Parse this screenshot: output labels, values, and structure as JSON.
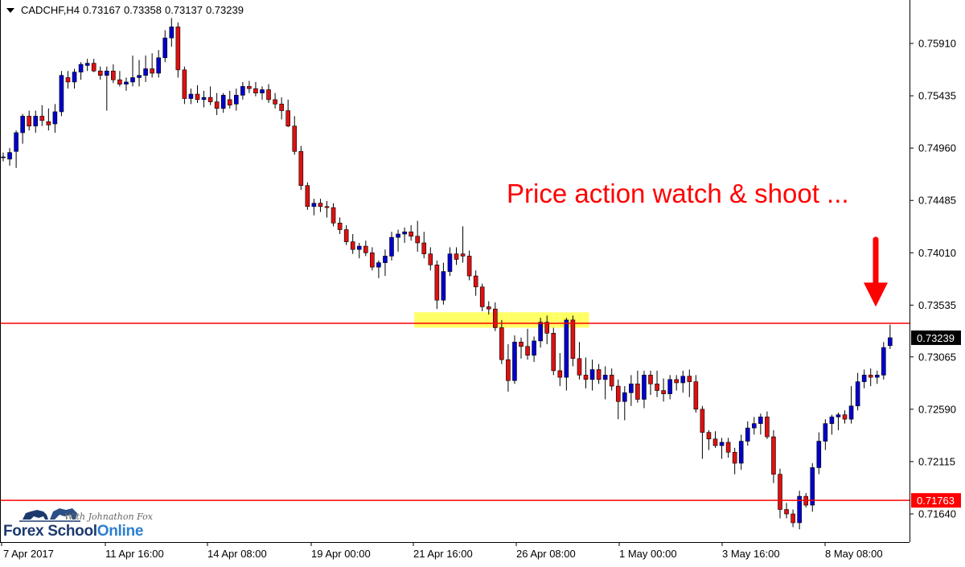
{
  "header": {
    "symbol": "CADCHF,H4",
    "open": "0.73167",
    "high": "0.73358",
    "low": "0.73137",
    "close": "0.73239"
  },
  "annotation": {
    "text": "Price action watch & shoot ...",
    "color": "#ff0000"
  },
  "logo": {
    "text_main": "Forex School",
    "text_accent": "Online",
    "tagline": "With Johnathon Fox"
  },
  "colors": {
    "bull": "#0000cc",
    "bear": "#dd1111",
    "wick": "#000000",
    "level_line": "#ff0000",
    "zone": "#ffff66",
    "grid": "#000000"
  },
  "chart_data": {
    "type": "candlestick",
    "timeframe": "H4",
    "ylim": [
      0.715,
      0.763
    ],
    "y_ticks": [
      "0.75910",
      "0.75435",
      "0.74960",
      "0.74485",
      "0.74010",
      "0.73535",
      "0.73065",
      "0.72590",
      "0.72115",
      "0.71640"
    ],
    "x_ticks": [
      "7 Apr 2017",
      "11 Apr 16:00",
      "14 Apr 08:00",
      "19 Apr 00:00",
      "21 Apr 16:00",
      "26 Apr 08:00",
      "1 May 00:00",
      "3 May 16:00",
      "8 May 08:00"
    ],
    "price_labels": [
      {
        "value": 0.73239,
        "text": "0.73239",
        "style": "current"
      },
      {
        "value": 0.71763,
        "text": "0.71763",
        "style": "level"
      }
    ],
    "levels": [
      0.7337,
      0.71763
    ],
    "zone": {
      "x_from": 63.5,
      "x_to": 90.5,
      "y_from": 0.7333,
      "y_to": 0.7347
    },
    "arrow": {
      "x": 134.4,
      "y_from": 0.7413,
      "y_to": 0.7352
    },
    "annotation_position": {
      "x": 112,
      "y": 0.745
    },
    "candles": [
      [
        0.7488,
        0.7492,
        0.7484,
        0.7488
      ],
      [
        0.7486,
        0.7496,
        0.748,
        0.7492
      ],
      [
        0.7493,
        0.7512,
        0.7478,
        0.751
      ],
      [
        0.751,
        0.7527,
        0.75,
        0.7525
      ],
      [
        0.7525,
        0.753,
        0.7512,
        0.7516
      ],
      [
        0.7516,
        0.753,
        0.751,
        0.7525
      ],
      [
        0.7525,
        0.7535,
        0.7516,
        0.7521
      ],
      [
        0.752,
        0.7532,
        0.7512,
        0.7517
      ],
      [
        0.7518,
        0.7536,
        0.751,
        0.7529
      ],
      [
        0.7529,
        0.7566,
        0.7525,
        0.7562
      ],
      [
        0.756,
        0.7566,
        0.755,
        0.7556
      ],
      [
        0.7556,
        0.7568,
        0.755,
        0.7565
      ],
      [
        0.7565,
        0.7574,
        0.7558,
        0.7572
      ],
      [
        0.7571,
        0.7577,
        0.7566,
        0.7573
      ],
      [
        0.7573,
        0.7577,
        0.7565,
        0.7566
      ],
      [
        0.7566,
        0.757,
        0.7558,
        0.7562
      ],
      [
        0.7562,
        0.757,
        0.753,
        0.7566
      ],
      [
        0.7566,
        0.7572,
        0.7555,
        0.7558
      ],
      [
        0.7558,
        0.7566,
        0.7552,
        0.7554
      ],
      [
        0.7554,
        0.756,
        0.7548,
        0.7556
      ],
      [
        0.7556,
        0.758,
        0.7552,
        0.756
      ],
      [
        0.756,
        0.7576,
        0.7552,
        0.7562
      ],
      [
        0.7562,
        0.758,
        0.7556,
        0.7568
      ],
      [
        0.7568,
        0.7582,
        0.756,
        0.7564
      ],
      [
        0.7564,
        0.7585,
        0.756,
        0.7578
      ],
      [
        0.7578,
        0.7603,
        0.7574,
        0.7596
      ],
      [
        0.7596,
        0.7614,
        0.7588,
        0.7606
      ],
      [
        0.7606,
        0.761,
        0.756,
        0.7567
      ],
      [
        0.7567,
        0.757,
        0.7536,
        0.7541
      ],
      [
        0.7541,
        0.755,
        0.7536,
        0.7545
      ],
      [
        0.7545,
        0.7553,
        0.7537,
        0.754
      ],
      [
        0.754,
        0.7548,
        0.7533,
        0.7542
      ],
      [
        0.7542,
        0.7552,
        0.7535,
        0.7538
      ],
      [
        0.7538,
        0.7546,
        0.7526,
        0.7532
      ],
      [
        0.7532,
        0.7546,
        0.7528,
        0.7544
      ],
      [
        0.754,
        0.7548,
        0.7532,
        0.7535
      ],
      [
        0.7536,
        0.755,
        0.753,
        0.7544
      ],
      [
        0.7544,
        0.7556,
        0.754,
        0.7552
      ],
      [
        0.7552,
        0.7557,
        0.7546,
        0.755
      ],
      [
        0.755,
        0.7556,
        0.7543,
        0.7546
      ],
      [
        0.7546,
        0.7552,
        0.754,
        0.7549
      ],
      [
        0.7549,
        0.7554,
        0.7537,
        0.754
      ],
      [
        0.754,
        0.7546,
        0.7532,
        0.7536
      ],
      [
        0.7536,
        0.7542,
        0.7522,
        0.753
      ],
      [
        0.753,
        0.754,
        0.7515,
        0.7516
      ],
      [
        0.7516,
        0.7525,
        0.749,
        0.7493
      ],
      [
        0.7493,
        0.7498,
        0.7458,
        0.7462
      ],
      [
        0.7462,
        0.7465,
        0.744,
        0.7443
      ],
      [
        0.7443,
        0.745,
        0.7435,
        0.7446
      ],
      [
        0.7446,
        0.745,
        0.7438,
        0.7443
      ],
      [
        0.7443,
        0.7448,
        0.7433,
        0.7442
      ],
      [
        0.7442,
        0.7446,
        0.7425,
        0.7428
      ],
      [
        0.7428,
        0.7433,
        0.7418,
        0.7422
      ],
      [
        0.7422,
        0.7426,
        0.7408,
        0.7411
      ],
      [
        0.7411,
        0.7418,
        0.74,
        0.7404
      ],
      [
        0.7404,
        0.741,
        0.7396,
        0.7407
      ],
      [
        0.7407,
        0.7412,
        0.7398,
        0.7401
      ],
      [
        0.7401,
        0.7406,
        0.7385,
        0.7388
      ],
      [
        0.7388,
        0.7394,
        0.7378,
        0.7392
      ],
      [
        0.7392,
        0.7404,
        0.738,
        0.7398
      ],
      [
        0.7398,
        0.742,
        0.7394,
        0.7415
      ],
      [
        0.7415,
        0.7422,
        0.7402,
        0.7418
      ],
      [
        0.7418,
        0.7424,
        0.741,
        0.742
      ],
      [
        0.742,
        0.7426,
        0.7412,
        0.7416
      ],
      [
        0.7416,
        0.743,
        0.7402,
        0.741
      ],
      [
        0.741,
        0.742,
        0.7396,
        0.74
      ],
      [
        0.74,
        0.7406,
        0.7385,
        0.739
      ],
      [
        0.739,
        0.7394,
        0.735,
        0.7358
      ],
      [
        0.7358,
        0.7392,
        0.7354,
        0.7384
      ],
      [
        0.7384,
        0.7406,
        0.738,
        0.74
      ],
      [
        0.74,
        0.7406,
        0.739,
        0.7395
      ],
      [
        0.74,
        0.7425,
        0.7392,
        0.7398
      ],
      [
        0.7398,
        0.7403,
        0.7376,
        0.738
      ],
      [
        0.738,
        0.7385,
        0.7362,
        0.737
      ],
      [
        0.737,
        0.7373,
        0.7348,
        0.7352
      ],
      [
        0.7352,
        0.7357,
        0.7345,
        0.735
      ],
      [
        0.735,
        0.7356,
        0.733,
        0.7333
      ],
      [
        0.7333,
        0.734,
        0.73,
        0.7304
      ],
      [
        0.7304,
        0.7318,
        0.7275,
        0.7285
      ],
      [
        0.7285,
        0.7326,
        0.7282,
        0.732
      ],
      [
        0.732,
        0.7324,
        0.7305,
        0.7316
      ],
      [
        0.7316,
        0.7332,
        0.7304,
        0.7308
      ],
      [
        0.7308,
        0.7325,
        0.7302,
        0.7321
      ],
      [
        0.7321,
        0.7342,
        0.7315,
        0.7338
      ],
      [
        0.7338,
        0.7344,
        0.7318,
        0.7328
      ],
      [
        0.7328,
        0.7333,
        0.729,
        0.7294
      ],
      [
        0.7294,
        0.731,
        0.728,
        0.7288
      ],
      [
        0.7288,
        0.7342,
        0.7276,
        0.734
      ],
      [
        0.734,
        0.7344,
        0.7298,
        0.7305
      ],
      [
        0.7305,
        0.732,
        0.7286,
        0.729
      ],
      [
        0.729,
        0.7306,
        0.7278,
        0.7286
      ],
      [
        0.7286,
        0.7304,
        0.7276,
        0.7295
      ],
      [
        0.7295,
        0.73,
        0.7282,
        0.7286
      ],
      [
        0.7286,
        0.7298,
        0.7268,
        0.729
      ],
      [
        0.729,
        0.7296,
        0.7276,
        0.728
      ],
      [
        0.728,
        0.7286,
        0.725,
        0.7266
      ],
      [
        0.7266,
        0.728,
        0.7249,
        0.7274
      ],
      [
        0.7274,
        0.729,
        0.7262,
        0.7282
      ],
      [
        0.7282,
        0.7294,
        0.7265,
        0.7268
      ],
      [
        0.7268,
        0.7294,
        0.726,
        0.729
      ],
      [
        0.729,
        0.7294,
        0.7272,
        0.7282
      ],
      [
        0.7282,
        0.7294,
        0.727,
        0.7276
      ],
      [
        0.7276,
        0.7287,
        0.7266,
        0.7273
      ],
      [
        0.7273,
        0.729,
        0.7268,
        0.7286
      ],
      [
        0.7286,
        0.729,
        0.7276,
        0.7283
      ],
      [
        0.7283,
        0.7294,
        0.7274,
        0.7289
      ],
      [
        0.7289,
        0.7295,
        0.727,
        0.7284
      ],
      [
        0.7284,
        0.729,
        0.7256,
        0.7259
      ],
      [
        0.7259,
        0.7262,
        0.7214,
        0.7238
      ],
      [
        0.7238,
        0.724,
        0.7222,
        0.7232
      ],
      [
        0.7232,
        0.7239,
        0.7224,
        0.7226
      ],
      [
        0.7226,
        0.7233,
        0.7214,
        0.7229
      ],
      [
        0.7229,
        0.7233,
        0.7215,
        0.722
      ],
      [
        0.722,
        0.7224,
        0.72,
        0.721
      ],
      [
        0.721,
        0.7236,
        0.7204,
        0.723
      ],
      [
        0.723,
        0.7248,
        0.7226,
        0.7242
      ],
      [
        0.7242,
        0.7252,
        0.7236,
        0.7246
      ],
      [
        0.7246,
        0.7255,
        0.7236,
        0.7252
      ],
      [
        0.7252,
        0.7257,
        0.7232,
        0.7234
      ],
      [
        0.7234,
        0.724,
        0.7192,
        0.72
      ],
      [
        0.72,
        0.7205,
        0.716,
        0.7168
      ],
      [
        0.7168,
        0.7174,
        0.716,
        0.7164
      ],
      [
        0.7164,
        0.7168,
        0.7152,
        0.7156
      ],
      [
        0.7156,
        0.7185,
        0.715,
        0.718
      ],
      [
        0.718,
        0.7183,
        0.717,
        0.7172
      ],
      [
        0.7172,
        0.721,
        0.7166,
        0.7206
      ],
      [
        0.7206,
        0.7238,
        0.72,
        0.723
      ],
      [
        0.723,
        0.725,
        0.7222,
        0.7246
      ],
      [
        0.7246,
        0.7254,
        0.7236,
        0.7252
      ],
      [
        0.7252,
        0.7256,
        0.724,
        0.7254
      ],
      [
        0.7254,
        0.7258,
        0.7246,
        0.725
      ],
      [
        0.725,
        0.728,
        0.7246,
        0.7262
      ],
      [
        0.7262,
        0.7292,
        0.7258,
        0.7284
      ],
      [
        0.7284,
        0.7295,
        0.7278,
        0.729
      ],
      [
        0.729,
        0.7296,
        0.728,
        0.7288
      ],
      [
        0.7288,
        0.7294,
        0.7282,
        0.729
      ],
      [
        0.729,
        0.732,
        0.7286,
        0.7315
      ],
      [
        0.73167,
        0.73358,
        0.73137,
        0.73239
      ]
    ]
  }
}
